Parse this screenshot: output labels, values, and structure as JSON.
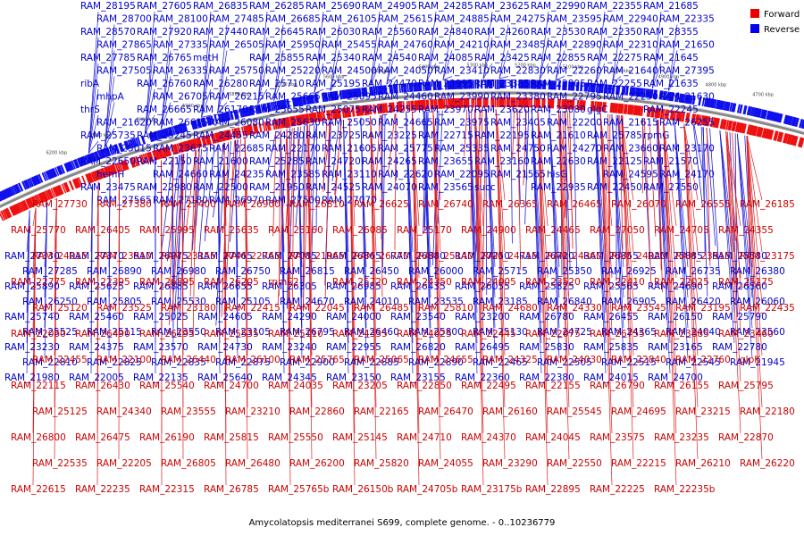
{
  "legend": {
    "forward_label": "Forward",
    "reverse_label": "Reverse",
    "forward_color": "#ee0000",
    "reverse_color": "#0000ee"
  },
  "caption": "Amycolatopsis mediterranei S699, complete genome. - 0..10236779",
  "ticks": [
    "6200 kbp",
    "6100 kbp",
    "6000 kbp",
    "5900 kbp",
    "5800 kbp",
    "5700 kbp",
    "5600 kbp",
    "5500 kbp",
    "5400 kbp",
    "5300 kbp",
    "5200 kbp",
    "5100 kbp",
    "5000 kbp",
    "4900 kbp",
    "4800 kbp",
    "4700 kbp"
  ],
  "reverse_labels": [
    "RAM_28195",
    "RAM_27605",
    "RAM_26835",
    "RAM_26285",
    "RAM_25690",
    "RAM_24905",
    "RAM_24285",
    "RAM_23625",
    "RAM_22990",
    "RAM_22355",
    "RAM_21685",
    "RAM_28700",
    "RAM_28100",
    "RAM_27485",
    "RAM_26685",
    "RAM_26105",
    "RAM_25615",
    "RAM_24885",
    "RAM_24275",
    "RAM_23595",
    "RAM_22940",
    "RAM_22335",
    "RAM_28570",
    "RAM_27920",
    "RAM_27440",
    "RAM_26645",
    "RAM_26030",
    "RAM_25560",
    "RAM_24840",
    "RAM_24260",
    "RAM_23530",
    "RAM_22350",
    "RAM_28355",
    "RAM_27865",
    "RAM_27335",
    "RAM_26505",
    "RAM_25950",
    "RAM_25455",
    "RAM_24760",
    "RAM_24210",
    "RAM_23485",
    "RAM_22890",
    "RAM_22310",
    "RAM_21650",
    "RAM_27785",
    "RAM_26765",
    "metH",
    "RAM_25855",
    "RAM_25340",
    "RAM_24540",
    "RAM_24085",
    "RAM_23425",
    "RAM_22855",
    "RAM_22275",
    "RAM_21645",
    "RAM_27505",
    "RAM_26335",
    "RAM_25750",
    "RAM_25220",
    "RAM_24500",
    "RAM_24050",
    "RAM_23410",
    "RAM_22830",
    "RAM_22260",
    "RAM_21640",
    "RAM_27395",
    "ribA",
    "RAM_26760",
    "RAM_26280",
    "RAM_25710",
    "RAM_25195",
    "RAM_24470",
    "RAM_23995",
    "RAM_23385",
    "RAM_22805",
    "RAM_22255",
    "RAM_21635",
    "mhpA",
    "RAM_26705",
    "RAM_26215",
    "RAM_25665",
    "RAM_25095",
    "RAM_24460",
    "RAM_23990",
    "RAM_23380",
    "RAM_22795",
    "RAM_22250",
    "RAM_21630",
    "thrS",
    "RAM_26665",
    "RAM_26170",
    "RAM_25655",
    "RAM_25075",
    "RAM_24255",
    "RAM_23970",
    "RAM_23620",
    "RAM_23080",
    "glgC",
    "RAM_22245",
    "RAM_21620",
    "RAM_26615",
    "RAM_26080",
    "RAM_25630",
    "RAM_25050",
    "RAM_24665",
    "RAM_23975",
    "RAM_23405",
    "RAM_22200",
    "RAM_21615",
    "RAM_26255",
    "RAM_25735",
    "RAM_25245",
    "RAM_24455",
    "RAM_24280",
    "RAM_23725",
    "RAM_23225",
    "RAM_22715",
    "RAM_22195",
    "RAM_21610",
    "RAM_25785",
    "rpmG",
    "RAM_25015",
    "RAM_23675",
    "RAM_22685",
    "RAM_22170",
    "RAM_21605",
    "RAM_25775",
    "RAM_25335",
    "RAM_24750",
    "RAM_24270",
    "RAM_23660",
    "RAM_23170",
    "RAM_22650",
    "RAM_22150",
    "RAM_21600",
    "RAM_25285",
    "RAM_24720",
    "RAM_24265",
    "RAM_23655",
    "RAM_23160",
    "RAM_22630",
    "RAM_22125",
    "RAM_21570",
    "hemH",
    "RAM_24660",
    "RAM_24235",
    "RAM_23585",
    "RAM_23110",
    "RAM_22620",
    "RAM_22095",
    "RAM_21565",
    "hisG",
    "RAM_24595",
    "RAM_24170",
    "RAM_23475",
    "RAM_22980",
    "RAM_22500",
    "RAM_21950",
    "RAM_24525",
    "RAM_24070",
    "RAM_23565",
    "succ",
    "RAM_22935",
    "RAM_22450",
    "RAM_27550",
    "RAM_27565",
    "RAM_27180",
    "RAM_26970",
    "RAM_27500",
    "RAM_27070",
    "RAM_27330",
    "RAM_27370",
    "RAM_26975",
    "RAM_27465",
    "RAM_27085",
    "RAM_26865",
    "RAM_26880",
    "RAM_27250",
    "RAM_26720",
    "RAM_26355",
    "RAM_25885",
    "RAM_25580",
    "RAM_27285",
    "RAM_26890",
    "RAM_26980",
    "RAM_26750",
    "RAM_26815",
    "RAM_26450",
    "RAM_26000",
    "RAM_25715",
    "RAM_25350",
    "RAM_26925",
    "RAM_26735",
    "RAM_26380",
    "RAM_25890",
    "RAM_25625",
    "RAM_26885",
    "RAM_26655",
    "RAM_26305",
    "RAM_26985",
    "RAM_26435",
    "RAM_26055",
    "RAM_25825",
    "RAM_25565",
    "RAM_24690",
    "RAM_26560",
    "RAM_26250",
    "RAM_25805",
    "RAM_25530",
    "RAM_25105",
    "RAM_24670",
    "RAM_24010",
    "RAM_23535",
    "RAM_23185",
    "RAM_26840",
    "RAM_26905",
    "RAM_26420",
    "RAM_26060",
    "RAM_25740",
    "RAM_25460",
    "RAM_25025",
    "RAM_24605",
    "RAM_24290",
    "RAM_24000",
    "RAM_23540",
    "RAM_23200",
    "RAM_26780",
    "RAM_26455",
    "RAM_26150",
    "RAM_25790",
    "RAM_25525",
    "RAM_25115",
    "RAM_23550",
    "RAM_23105",
    "RAM_26795",
    "RAM_26460",
    "RAM_25800",
    "RAM_25130",
    "RAM_24725",
    "RAM_24365",
    "RAM_24040",
    "RAM_23560",
    "RAM_23230",
    "RAM_24375",
    "RAM_23570",
    "RAM_24730",
    "RAM_23240",
    "RAM_22955",
    "RAM_26820",
    "RAM_26495",
    "RAM_25830",
    "RAM_25835",
    "RAM_23165",
    "RAM_22780",
    "RAM_22810",
    "RAM_22825",
    "RAM_22835",
    "RAM_22875",
    "RAM_22900",
    "RAM_22885",
    "RAM_22890",
    "RAM_22465",
    "RAM_22505",
    "RAM_22515",
    "RAM_22545",
    "RAM_21945",
    "RAM_21980",
    "RAM_22005",
    "RAM_22135",
    "RAM_25640",
    "RAM_24345",
    "RAM_23150",
    "RAM_23155",
    "RAM_22360",
    "RAM_22380",
    "RAM_24015",
    "RAM_24700"
  ],
  "forward_labels": [
    "RAM_27730",
    "RAM_27380",
    "RAM_27400",
    "RAM_26900",
    "RAM_26810",
    "RAM_26625",
    "RAM_26740",
    "RAM_26365",
    "RAM_26465",
    "RAM_26070",
    "RAM_26555",
    "RAM_26185",
    "RAM_25770",
    "RAM_26405",
    "RAM_25995",
    "RAM_25635",
    "RAM_25160",
    "RAM_26085",
    "RAM_25170",
    "RAM_24900",
    "RAM_24465",
    "RAM_27050",
    "RAM_24705",
    "RAM_24355",
    "RAM_24015",
    "RAM_23510",
    "RAM_23155",
    "RAM_22765",
    "RAM_21965",
    "RAM_26770",
    "RAM_25140",
    "RAM_24715",
    "RAM_24360",
    "RAM_24020",
    "RAM_23515",
    "RAM_23175",
    "RAM_22775",
    "RAM_22395",
    "RAM_26895",
    "RAM_26205",
    "rpmE2",
    "RAM_25720",
    "RAM_24350",
    "RAM_24005",
    "RAM_23520",
    "RAM_22410",
    "RAM_22025",
    "RAM_25175",
    "RAM_25120",
    "RAM_23525",
    "RAM_23180",
    "RAM_22415",
    "RAM_22045",
    "RAM_26485",
    "RAM_25810",
    "RAM_24680",
    "RAM_24330",
    "RAM_23545",
    "RAM_23195",
    "RAM_22435",
    "RAM_22060",
    "RAM_26490",
    "RAM_26195",
    "RAM_25535",
    "RAM_25110",
    "RAM_24335",
    "RAM_24025",
    "RAM_22445",
    "RAM_22075",
    "RAM_26755",
    "RAM_23885",
    "RAM_23460",
    "RAM_22455",
    "RAM_22100",
    "RAM_26440",
    "RAM_26100",
    "RAM_25765",
    "RAM_25065",
    "RAM_24655",
    "RAM_24325",
    "RAM_24030",
    "RAM_22840",
    "RAM_22760",
    "glpK",
    "RAM_22115",
    "RAM_26430",
    "RAM_25540",
    "RAM_24700",
    "RAM_24035",
    "RAM_23205",
    "RAM_22850",
    "RAM_22495",
    "RAM_22155",
    "RAM_26790",
    "RAM_26155",
    "RAM_25795",
    "RAM_25125",
    "RAM_24340",
    "RAM_23555",
    "RAM_23210",
    "RAM_22860",
    "RAM_22165",
    "RAM_26470",
    "RAM_26160",
    "RAM_25545",
    "RAM_24695",
    "RAM_23215",
    "RAM_22180",
    "RAM_26800",
    "RAM_26475",
    "RAM_26190",
    "RAM_25815",
    "RAM_25550",
    "RAM_25145",
    "RAM_24710",
    "RAM_24370",
    "RAM_24045",
    "RAM_23575",
    "RAM_23235",
    "RAM_22870",
    "RAM_22535",
    "RAM_22205",
    "RAM_26805",
    "RAM_26480",
    "RAM_26200",
    "RAM_25820",
    "RAM_24055",
    "RAM_23290",
    "RAM_22550",
    "RAM_22215",
    "RAM_26210",
    "RAM_26220",
    "RAM_22615",
    "RAM_22235",
    "RAM_22315",
    "RAM_26785",
    "RAM_25765b",
    "RAM_26150b",
    "RAM_24705b",
    "RAM_23175b",
    "RAM_22895",
    "RAM_22225",
    "RAM_22235b"
  ]
}
